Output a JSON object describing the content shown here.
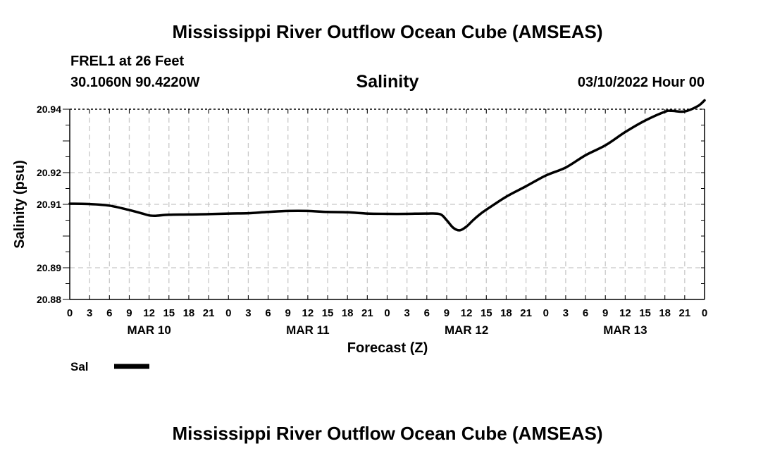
{
  "header": {
    "title": "Mississippi River Outflow Ocean Cube (AMSEAS)",
    "station": "FREL1 at 26 Feet",
    "coords": "30.1060N  90.4220W",
    "variable": "Salinity",
    "datetime": "03/10/2022 Hour 00"
  },
  "footer": {
    "title": "Mississippi River Outflow Ocean Cube (AMSEAS)"
  },
  "chart_data": {
    "type": "line",
    "title": "Salinity",
    "xlabel": "Forecast (Z)",
    "ylabel": "Salinity (psu)",
    "ylim": [
      20.88,
      20.94
    ],
    "y_ticks": [
      20.88,
      20.89,
      20.91,
      20.92,
      20.94
    ],
    "y_tick_labels": [
      "20.88",
      "20.89",
      "20.91",
      "20.92",
      "20.94"
    ],
    "xlim": [
      0,
      96
    ],
    "x_tick_labels": [
      "0",
      "3",
      "6",
      "9",
      "12",
      "15",
      "18",
      "21",
      "0",
      "3",
      "6",
      "9",
      "12",
      "15",
      "18",
      "21",
      "0",
      "3",
      "6",
      "9",
      "12",
      "15",
      "18",
      "21",
      "0",
      "3",
      "6",
      "9",
      "12",
      "15",
      "18",
      "21",
      "0"
    ],
    "date_labels": [
      {
        "hour": 12,
        "label": "MAR 10"
      },
      {
        "hour": 36,
        "label": "MAR 11"
      },
      {
        "hour": 60,
        "label": "MAR 12"
      },
      {
        "hour": 84,
        "label": "MAR 13"
      }
    ],
    "grid": true,
    "legend": [
      {
        "name": "Sal",
        "placement": "bottom-left"
      }
    ],
    "series": [
      {
        "name": "Sal",
        "x": [
          0,
          3,
          6,
          9,
          11,
          12,
          13,
          15,
          18,
          21,
          24,
          27,
          30,
          33,
          36,
          39,
          42,
          45,
          48,
          51,
          54,
          56,
          57,
          58,
          59,
          60,
          61,
          62,
          63,
          66,
          69,
          72,
          75,
          78,
          81,
          84,
          87,
          90,
          91,
          93,
          95,
          96
        ],
        "y": [
          20.9102,
          20.9101,
          20.9096,
          20.9082,
          20.9071,
          20.9065,
          20.9064,
          20.9067,
          20.9068,
          20.9069,
          20.9071,
          20.9072,
          20.9076,
          20.9079,
          20.9079,
          20.9076,
          20.9075,
          20.9071,
          20.907,
          20.907,
          20.9071,
          20.9069,
          20.905,
          20.9026,
          20.9018,
          20.903,
          20.905,
          20.9068,
          20.9083,
          20.9124,
          20.9157,
          20.9191,
          20.9216,
          20.9255,
          20.9286,
          20.9328,
          20.9364,
          20.9392,
          20.9395,
          20.9393,
          20.941,
          20.9428
        ]
      }
    ]
  }
}
